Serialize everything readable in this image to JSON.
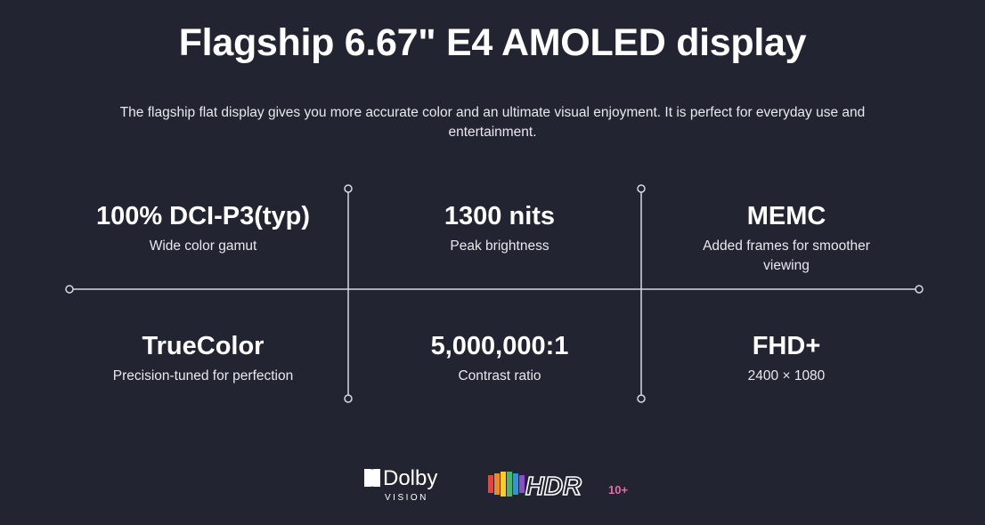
{
  "header": {
    "title": "Flagship 6.67\" E4 AMOLED display",
    "subtitle": "The flagship flat display gives you more accurate color and an ultimate visual enjoyment. It is perfect for everyday use and entertainment."
  },
  "specs": [
    {
      "heading": "100% DCI-P3(typ)",
      "caption": "Wide color gamut"
    },
    {
      "heading": "1300 nits",
      "caption": "Peak brightness"
    },
    {
      "heading": "MEMC",
      "caption": "Added frames for smoother viewing"
    },
    {
      "heading": "TrueColor",
      "caption": "Precision-tuned for perfection"
    },
    {
      "heading": "5,000,000:1",
      "caption": "Contrast ratio"
    },
    {
      "heading": "FHD+",
      "caption": "2400 × 1080"
    }
  ],
  "logos": {
    "dolby": "Dolby",
    "dolby_sub": "VISION",
    "hdr": "HDR",
    "hdr_sub": "10+"
  }
}
